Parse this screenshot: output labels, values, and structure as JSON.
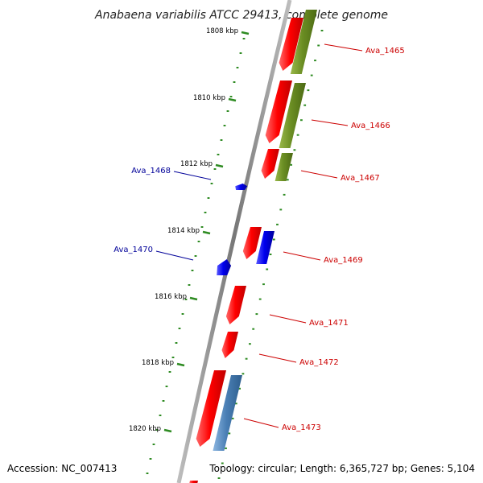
{
  "title": "Anabaena variabilis ATCC 29413, complete genome",
  "footer": {
    "accession": "Accession: NC_007413",
    "summary": "Topology: circular; Length: 6,365,727 bp; Genes: 5,104"
  },
  "ticks": [
    {
      "label": "1808 kbp"
    },
    {
      "label": "1810 kbp"
    },
    {
      "label": "1812 kbp"
    },
    {
      "label": "1814 kbp"
    },
    {
      "label": "1816 kbp"
    },
    {
      "label": "1818 kbp"
    },
    {
      "label": "1820 kbp"
    }
  ],
  "genes": [
    {
      "name": "Ava_1465",
      "color": "#cc0000"
    },
    {
      "name": "Ava_1466",
      "color": "#cc0000"
    },
    {
      "name": "Ava_1467",
      "color": "#cc0000"
    },
    {
      "name": "Ava_1468",
      "color": "#000099"
    },
    {
      "name": "Ava_1469",
      "color": "#cc0000"
    },
    {
      "name": "Ava_1470",
      "color": "#000099"
    },
    {
      "name": "Ava_1471",
      "color": "#cc0000"
    },
    {
      "name": "Ava_1472",
      "color": "#cc0000"
    },
    {
      "name": "Ava_1473",
      "color": "#cc0000"
    }
  ],
  "colors": {
    "cds_forward": "#ee0000",
    "cds_reverse": "#0000ee",
    "cog_green": "#6b8e23",
    "cog_blue": "#4a7fb5",
    "backbone": "#8a8a8a",
    "tick": "#2e8b22"
  }
}
